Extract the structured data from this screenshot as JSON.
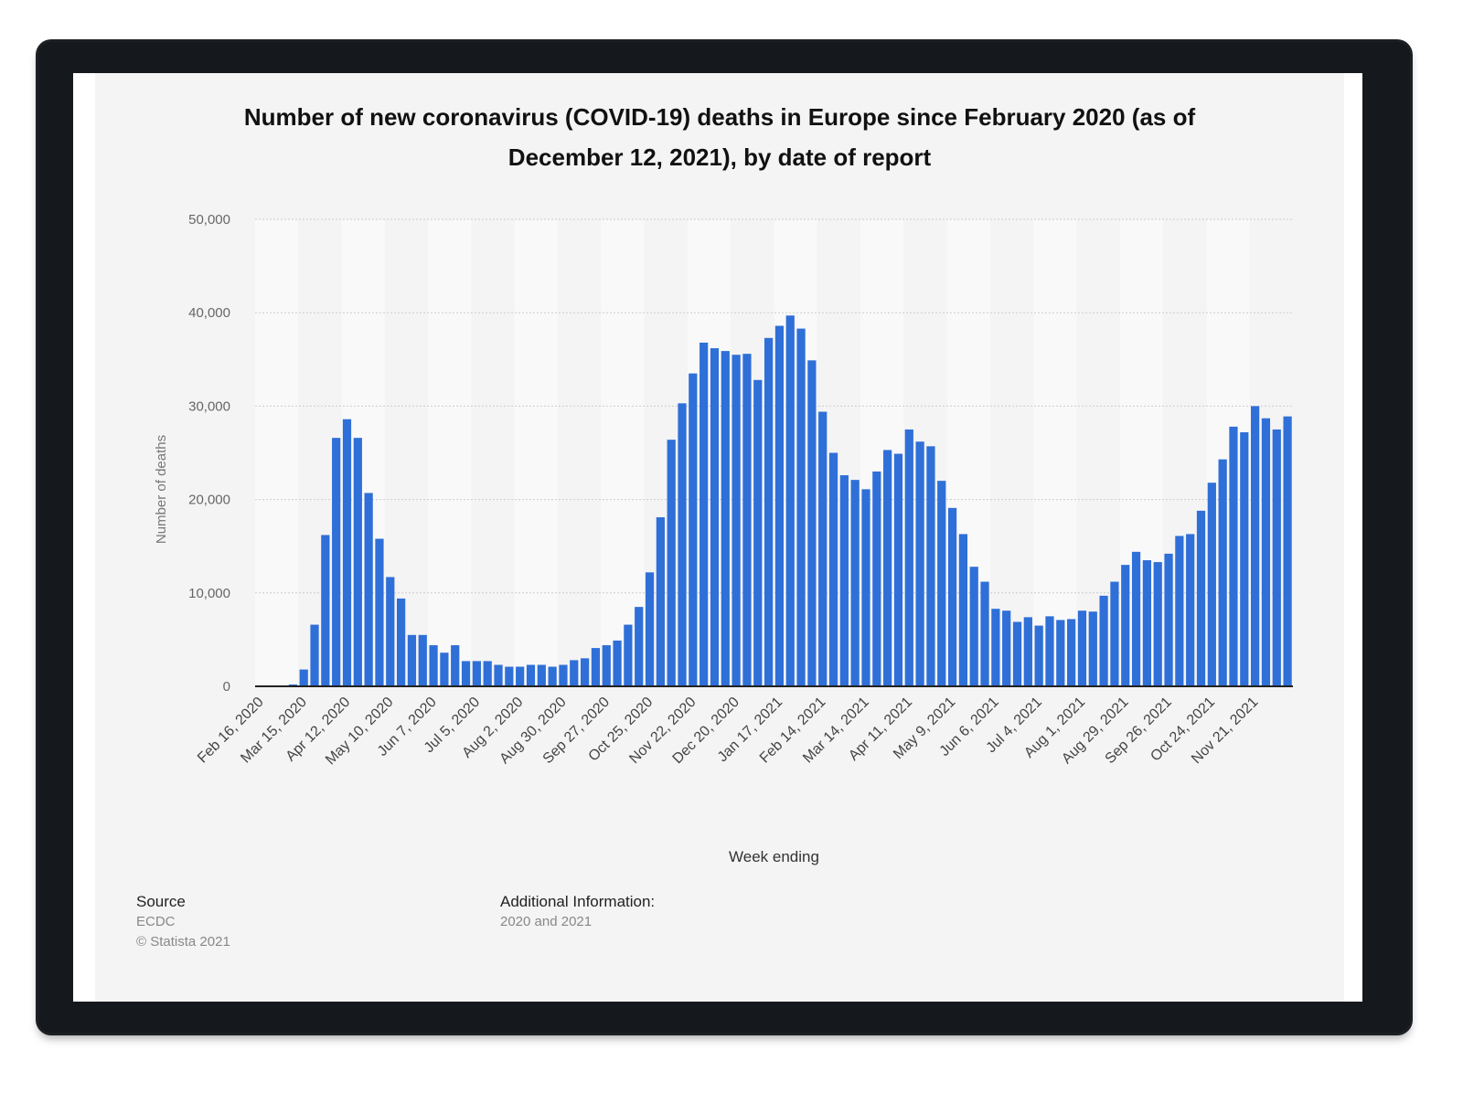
{
  "title_line1": "Number of new coronavirus (COVID-19) deaths in Europe since February 2020 (as of",
  "title_line2": "December 12, 2021), by date of report",
  "footer": {
    "source_label": "Source",
    "source_name": "ECDC",
    "copyright": "© Statista 2021",
    "additional_label": "Additional Information:",
    "additional_text": "2020 and 2021"
  },
  "colors": {
    "bar": "#2f6fd8",
    "panel": "#f4f4f4",
    "band": "#f9f9f9",
    "grid": "#cccccc",
    "axis": "#222222"
  },
  "chart_data": {
    "type": "bar",
    "title": "Number of new coronavirus (COVID-19) deaths in Europe since February 2020 (as of December 12, 2021), by date of report",
    "xlabel": "Week ending",
    "ylabel": "Number of deaths",
    "ylim": [
      0,
      50000
    ],
    "yticks": [
      0,
      10000,
      20000,
      30000,
      40000,
      50000
    ],
    "ytick_labels": [
      "0",
      "10,000",
      "20,000",
      "30,000",
      "40,000",
      "50,000"
    ],
    "grid": true,
    "legend": "none",
    "x_tick_labels": [
      {
        "index": 0,
        "label": "Feb 16, 2020"
      },
      {
        "index": 4,
        "label": "Mar 15, 2020"
      },
      {
        "index": 8,
        "label": "Apr 12, 2020"
      },
      {
        "index": 12,
        "label": "May 10, 2020"
      },
      {
        "index": 16,
        "label": "Jun 7, 2020"
      },
      {
        "index": 20,
        "label": "Jul 5, 2020"
      },
      {
        "index": 24,
        "label": "Aug 2, 2020"
      },
      {
        "index": 28,
        "label": "Aug 30, 2020"
      },
      {
        "index": 32,
        "label": "Sep 27, 2020"
      },
      {
        "index": 36,
        "label": "Oct 25, 2020"
      },
      {
        "index": 40,
        "label": "Nov 22, 2020"
      },
      {
        "index": 44,
        "label": "Dec 20, 2020"
      },
      {
        "index": 48,
        "label": "Jan 17, 2021"
      },
      {
        "index": 52,
        "label": "Feb 14, 2021"
      },
      {
        "index": 56,
        "label": "Mar 14, 2021"
      },
      {
        "index": 60,
        "label": "Apr 11, 2021"
      },
      {
        "index": 64,
        "label": "May 9, 2021"
      },
      {
        "index": 68,
        "label": "Jun 6, 2021"
      },
      {
        "index": 72,
        "label": "Jul 4, 2021"
      },
      {
        "index": 76,
        "label": "Aug 1, 2021"
      },
      {
        "index": 80,
        "label": "Aug 29, 2021"
      },
      {
        "index": 84,
        "label": "Sep 26, 2021"
      },
      {
        "index": 88,
        "label": "Oct 24, 2021"
      },
      {
        "index": 92,
        "label": "Nov 21, 2021"
      }
    ],
    "values": [
      0,
      0,
      0,
      200,
      1800,
      6600,
      16200,
      26600,
      28600,
      26600,
      20700,
      15800,
      11700,
      9400,
      5500,
      5500,
      4400,
      3600,
      4400,
      2700,
      2700,
      2700,
      2300,
      2100,
      2100,
      2300,
      2300,
      2100,
      2300,
      2800,
      3000,
      4100,
      4400,
      4900,
      6600,
      8500,
      12200,
      18100,
      26400,
      30300,
      33500,
      36800,
      36200,
      35900,
      35500,
      35600,
      32800,
      37300,
      38600,
      39700,
      38300,
      34900,
      29400,
      25000,
      22600,
      22100,
      21100,
      23000,
      25300,
      24900,
      27500,
      26200,
      25700,
      22000,
      19100,
      16300,
      12800,
      11200,
      8300,
      8100,
      6900,
      7400,
      6500,
      7500,
      7100,
      7200,
      8100,
      8000,
      9700,
      11200,
      13000,
      14400,
      13500,
      13300,
      14200,
      16100,
      16300,
      18800,
      21800,
      24300,
      27800,
      27200,
      30000,
      28700,
      27500,
      28900
    ]
  }
}
